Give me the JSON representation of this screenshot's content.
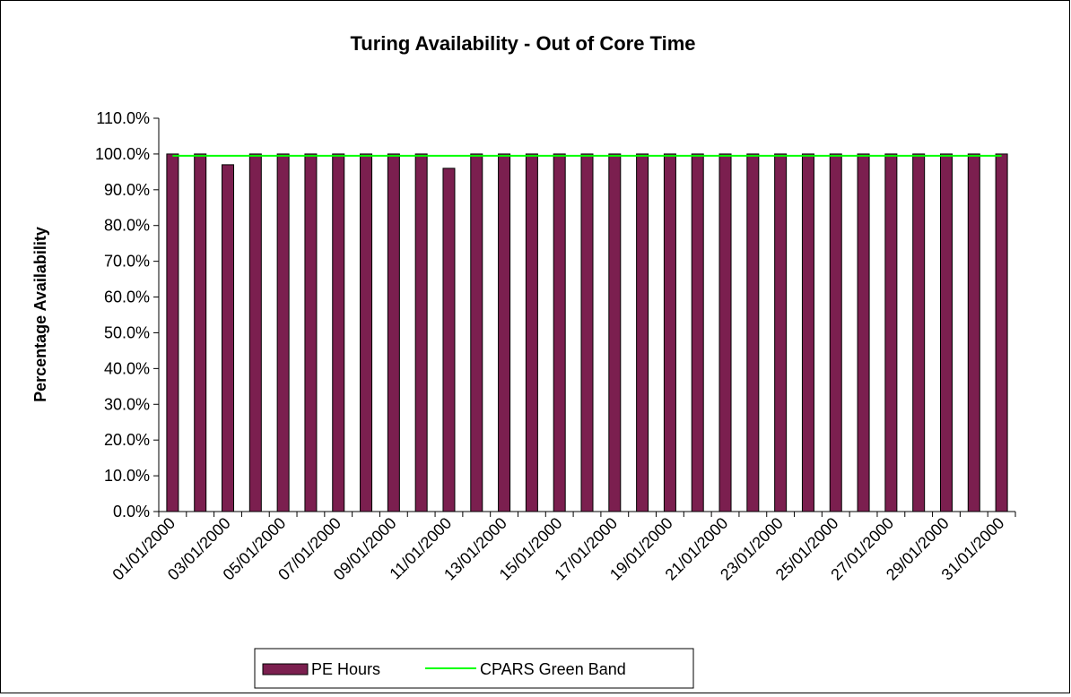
{
  "chart_data": {
    "type": "bar",
    "title": "Turing Availability - Out of Core Time",
    "xlabel": "",
    "ylabel": "Percentage Availability",
    "ylim": [
      0,
      110
    ],
    "y_ticks": [
      "0.0%",
      "10.0%",
      "20.0%",
      "30.0%",
      "40.0%",
      "50.0%",
      "60.0%",
      "70.0%",
      "80.0%",
      "90.0%",
      "100.0%",
      "110.0%"
    ],
    "categories": [
      "01/01/2000",
      "02/01/2000",
      "03/01/2000",
      "04/01/2000",
      "05/01/2000",
      "06/01/2000",
      "07/01/2000",
      "08/01/2000",
      "09/01/2000",
      "10/01/2000",
      "11/01/2000",
      "12/01/2000",
      "13/01/2000",
      "14/01/2000",
      "15/01/2000",
      "16/01/2000",
      "17/01/2000",
      "18/01/2000",
      "19/01/2000",
      "20/01/2000",
      "21/01/2000",
      "22/01/2000",
      "23/01/2000",
      "24/01/2000",
      "25/01/2000",
      "26/01/2000",
      "27/01/2000",
      "28/01/2000",
      "29/01/2000",
      "30/01/2000",
      "31/01/2000"
    ],
    "x_tick_labels": [
      "01/01/2000",
      "03/01/2000",
      "05/01/2000",
      "07/01/2000",
      "09/01/2000",
      "11/01/2000",
      "13/01/2000",
      "15/01/2000",
      "17/01/2000",
      "19/01/2000",
      "21/01/2000",
      "23/01/2000",
      "25/01/2000",
      "27/01/2000",
      "29/01/2000",
      "31/01/2000"
    ],
    "series": [
      {
        "name": "PE Hours",
        "type": "bar",
        "color": "#7b1f4f",
        "values": [
          100,
          100,
          97,
          100,
          100,
          100,
          100,
          100,
          100,
          100,
          96,
          100,
          100,
          100,
          100,
          100,
          100,
          100,
          100,
          100,
          100,
          100,
          100,
          100,
          100,
          100,
          100,
          100,
          100,
          100,
          100
        ]
      },
      {
        "name": "CPARS Green Band",
        "type": "line",
        "color": "#00ff00",
        "values": [
          99.5,
          99.5,
          99.5,
          99.5,
          99.5,
          99.5,
          99.5,
          99.5,
          99.5,
          99.5,
          99.5,
          99.5,
          99.5,
          99.5,
          99.5,
          99.5,
          99.5,
          99.5,
          99.5,
          99.5,
          99.5,
          99.5,
          99.5,
          99.5,
          99.5,
          99.5,
          99.5,
          99.5,
          99.5,
          99.5,
          99.5
        ]
      }
    ],
    "grid": false,
    "legend_position": "bottom"
  }
}
